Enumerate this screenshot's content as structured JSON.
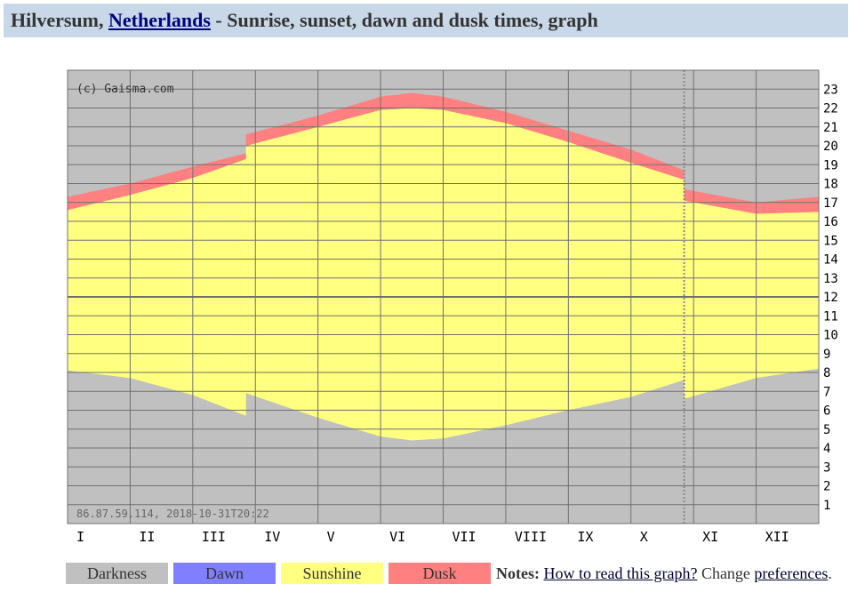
{
  "header": {
    "place": "Hilversum,",
    "country_link": "Netherlands",
    "suffix": " - Sunrise, sunset, dawn and dusk times, graph"
  },
  "chart_data": {
    "type": "area",
    "copyright": "(c) Gaisma.com",
    "footer_stamp": "86.87.59.114, 2018-10-31T20:22",
    "x_labels": [
      "I",
      "II",
      "III",
      "IV",
      "V",
      "VI",
      "VII",
      "VIII",
      "IX",
      "X",
      "XI",
      "XII"
    ],
    "y_labels": [
      "1",
      "2",
      "3",
      "4",
      "5",
      "6",
      "7",
      "8",
      "9",
      "10",
      "11",
      "12",
      "13",
      "14",
      "15",
      "16",
      "17",
      "18",
      "19",
      "20",
      "21",
      "22",
      "23"
    ],
    "ylim": [
      0,
      24
    ],
    "grid": true,
    "dst_breaks": [
      "end of March",
      "end of October"
    ],
    "series": [
      {
        "name": "Dawn (start)",
        "points": [
          [
            0,
            8.6
          ],
          [
            1,
            8.3
          ],
          [
            2,
            7.5
          ],
          [
            2.85,
            6.3
          ],
          [
            2.85,
            7.5
          ],
          [
            4,
            6.3
          ],
          [
            5,
            5.1
          ],
          [
            5.5,
            4.8
          ],
          [
            6,
            5.0
          ],
          [
            7,
            5.7
          ],
          [
            8,
            6.4
          ],
          [
            9,
            7.2
          ],
          [
            9.85,
            8.2
          ],
          [
            9.85,
            7.2
          ],
          [
            11,
            8.3
          ],
          [
            12,
            8.7
          ]
        ]
      },
      {
        "name": "Sunrise",
        "points": [
          [
            0,
            8.1
          ],
          [
            1,
            7.7
          ],
          [
            2,
            6.8
          ],
          [
            2.85,
            5.7
          ],
          [
            2.85,
            6.9
          ],
          [
            4,
            5.6
          ],
          [
            5,
            4.6
          ],
          [
            5.5,
            4.4
          ],
          [
            6,
            4.5
          ],
          [
            7,
            5.2
          ],
          [
            8,
            6.0
          ],
          [
            9,
            6.7
          ],
          [
            9.85,
            7.6
          ],
          [
            9.85,
            6.6
          ],
          [
            11,
            7.7
          ],
          [
            12,
            8.2
          ]
        ]
      },
      {
        "name": "Sunset",
        "points": [
          [
            0,
            16.6
          ],
          [
            1,
            17.4
          ],
          [
            2,
            18.3
          ],
          [
            2.85,
            19.3
          ],
          [
            2.85,
            20.0
          ],
          [
            4,
            21.0
          ],
          [
            5,
            21.9
          ],
          [
            5.5,
            22.0
          ],
          [
            6,
            21.9
          ],
          [
            7,
            21.2
          ],
          [
            8,
            20.2
          ],
          [
            9,
            19.1
          ],
          [
            9.85,
            18.2
          ],
          [
            9.85,
            17.1
          ],
          [
            11,
            16.4
          ],
          [
            12,
            16.5
          ]
        ]
      },
      {
        "name": "Dusk (end)",
        "points": [
          [
            0,
            17.3
          ],
          [
            1,
            18.0
          ],
          [
            2,
            18.9
          ],
          [
            2.85,
            19.6
          ],
          [
            2.85,
            20.6
          ],
          [
            4,
            21.6
          ],
          [
            5,
            22.6
          ],
          [
            5.5,
            22.8
          ],
          [
            6,
            22.6
          ],
          [
            7,
            21.8
          ],
          [
            8,
            20.8
          ],
          [
            9,
            19.8
          ],
          [
            9.85,
            18.7
          ],
          [
            9.85,
            17.7
          ],
          [
            11,
            17.0
          ],
          [
            12,
            17.3
          ]
        ]
      }
    ],
    "colors": {
      "darkness": "#c0c0c0",
      "dawn": "#8080ff",
      "sunshine": "#ffff80",
      "dusk": "#ff8080",
      "grid": "#707070"
    }
  },
  "legend": [
    {
      "label": "Darkness",
      "color": "#c0c0c0"
    },
    {
      "label": "Dawn",
      "color": "#8080ff"
    },
    {
      "label": "Sunshine",
      "color": "#ffff80"
    },
    {
      "label": "Dusk",
      "color": "#ff8080"
    }
  ],
  "notes": {
    "label": "Notes:",
    "link1": "How to read this graph?",
    "middle": " Change ",
    "link2": "preferences",
    "end": "."
  }
}
